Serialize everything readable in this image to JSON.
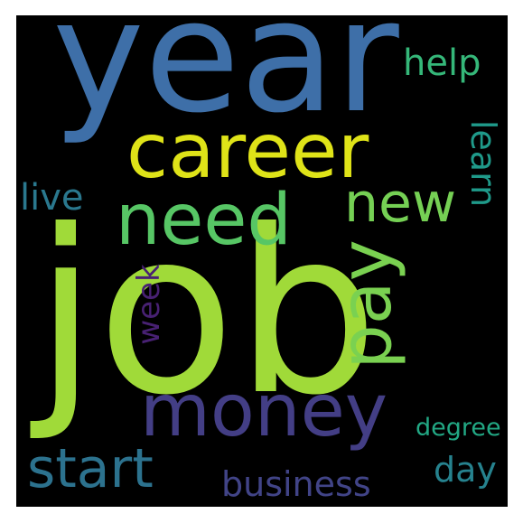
{
  "words": [
    {
      "text": "job",
      "color": "#a0da39",
      "rotate": 0
    },
    {
      "text": "year",
      "color": "#3e6fa8",
      "rotate": 0
    },
    {
      "text": "career",
      "color": "#dfe318",
      "rotate": 0
    },
    {
      "text": "need",
      "color": "#57c665",
      "rotate": 0
    },
    {
      "text": "money",
      "color": "#433e85",
      "rotate": 0
    },
    {
      "text": "pay",
      "color": "#7ad151",
      "rotate": -90
    },
    {
      "text": "new",
      "color": "#75d054",
      "rotate": 0
    },
    {
      "text": "start",
      "color": "#2c728e",
      "rotate": 0
    },
    {
      "text": "week",
      "color": "#482173",
      "rotate": -90
    },
    {
      "text": "learn",
      "color": "#1f9a8a",
      "rotate": 90
    },
    {
      "text": "live",
      "color": "#2a788e",
      "rotate": 0
    },
    {
      "text": "help",
      "color": "#35b779",
      "rotate": 0
    },
    {
      "text": "business",
      "color": "#414487",
      "rotate": 0
    },
    {
      "text": "day",
      "color": "#26828e",
      "rotate": 0
    },
    {
      "text": "degree",
      "color": "#22a884",
      "rotate": 0
    }
  ]
}
